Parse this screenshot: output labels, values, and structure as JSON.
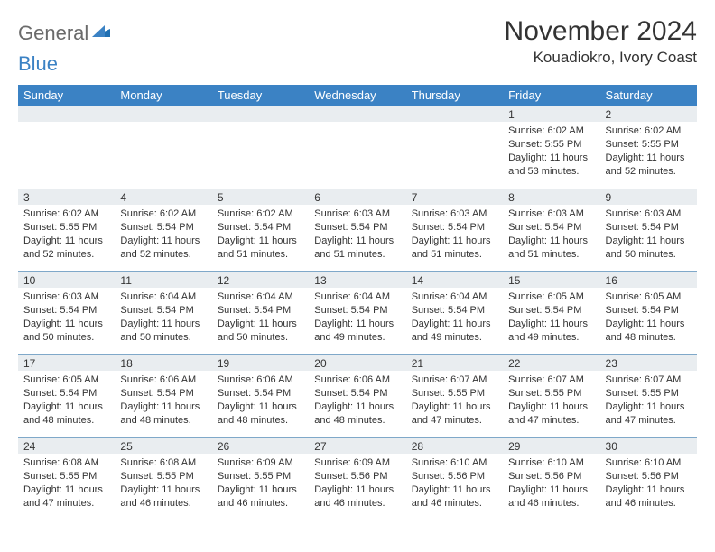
{
  "logo": {
    "text1": "General",
    "text2": "Blue"
  },
  "title": "November 2024",
  "location": "Kouadiokro, Ivory Coast",
  "colors": {
    "header_bg": "#3b82c4",
    "header_text": "#ffffff",
    "daynum_bg": "#e9edf0",
    "daynum_border": "#7fa8c9",
    "body_text": "#333333",
    "logo_gray": "#6b6b6b",
    "logo_blue": "#3b82c4"
  },
  "typography": {
    "title_fontsize": 30,
    "location_fontsize": 17,
    "header_fontsize": 13,
    "daynum_fontsize": 12,
    "cell_fontsize": 11
  },
  "day_headers": [
    "Sunday",
    "Monday",
    "Tuesday",
    "Wednesday",
    "Thursday",
    "Friday",
    "Saturday"
  ],
  "weeks": [
    [
      {
        "num": "",
        "sunrise": "",
        "sunset": "",
        "daylight": ""
      },
      {
        "num": "",
        "sunrise": "",
        "sunset": "",
        "daylight": ""
      },
      {
        "num": "",
        "sunrise": "",
        "sunset": "",
        "daylight": ""
      },
      {
        "num": "",
        "sunrise": "",
        "sunset": "",
        "daylight": ""
      },
      {
        "num": "",
        "sunrise": "",
        "sunset": "",
        "daylight": ""
      },
      {
        "num": "1",
        "sunrise": "Sunrise: 6:02 AM",
        "sunset": "Sunset: 5:55 PM",
        "daylight": "Daylight: 11 hours and 53 minutes."
      },
      {
        "num": "2",
        "sunrise": "Sunrise: 6:02 AM",
        "sunset": "Sunset: 5:55 PM",
        "daylight": "Daylight: 11 hours and 52 minutes."
      }
    ],
    [
      {
        "num": "3",
        "sunrise": "Sunrise: 6:02 AM",
        "sunset": "Sunset: 5:55 PM",
        "daylight": "Daylight: 11 hours and 52 minutes."
      },
      {
        "num": "4",
        "sunrise": "Sunrise: 6:02 AM",
        "sunset": "Sunset: 5:54 PM",
        "daylight": "Daylight: 11 hours and 52 minutes."
      },
      {
        "num": "5",
        "sunrise": "Sunrise: 6:02 AM",
        "sunset": "Sunset: 5:54 PM",
        "daylight": "Daylight: 11 hours and 51 minutes."
      },
      {
        "num": "6",
        "sunrise": "Sunrise: 6:03 AM",
        "sunset": "Sunset: 5:54 PM",
        "daylight": "Daylight: 11 hours and 51 minutes."
      },
      {
        "num": "7",
        "sunrise": "Sunrise: 6:03 AM",
        "sunset": "Sunset: 5:54 PM",
        "daylight": "Daylight: 11 hours and 51 minutes."
      },
      {
        "num": "8",
        "sunrise": "Sunrise: 6:03 AM",
        "sunset": "Sunset: 5:54 PM",
        "daylight": "Daylight: 11 hours and 51 minutes."
      },
      {
        "num": "9",
        "sunrise": "Sunrise: 6:03 AM",
        "sunset": "Sunset: 5:54 PM",
        "daylight": "Daylight: 11 hours and 50 minutes."
      }
    ],
    [
      {
        "num": "10",
        "sunrise": "Sunrise: 6:03 AM",
        "sunset": "Sunset: 5:54 PM",
        "daylight": "Daylight: 11 hours and 50 minutes."
      },
      {
        "num": "11",
        "sunrise": "Sunrise: 6:04 AM",
        "sunset": "Sunset: 5:54 PM",
        "daylight": "Daylight: 11 hours and 50 minutes."
      },
      {
        "num": "12",
        "sunrise": "Sunrise: 6:04 AM",
        "sunset": "Sunset: 5:54 PM",
        "daylight": "Daylight: 11 hours and 50 minutes."
      },
      {
        "num": "13",
        "sunrise": "Sunrise: 6:04 AM",
        "sunset": "Sunset: 5:54 PM",
        "daylight": "Daylight: 11 hours and 49 minutes."
      },
      {
        "num": "14",
        "sunrise": "Sunrise: 6:04 AM",
        "sunset": "Sunset: 5:54 PM",
        "daylight": "Daylight: 11 hours and 49 minutes."
      },
      {
        "num": "15",
        "sunrise": "Sunrise: 6:05 AM",
        "sunset": "Sunset: 5:54 PM",
        "daylight": "Daylight: 11 hours and 49 minutes."
      },
      {
        "num": "16",
        "sunrise": "Sunrise: 6:05 AM",
        "sunset": "Sunset: 5:54 PM",
        "daylight": "Daylight: 11 hours and 48 minutes."
      }
    ],
    [
      {
        "num": "17",
        "sunrise": "Sunrise: 6:05 AM",
        "sunset": "Sunset: 5:54 PM",
        "daylight": "Daylight: 11 hours and 48 minutes."
      },
      {
        "num": "18",
        "sunrise": "Sunrise: 6:06 AM",
        "sunset": "Sunset: 5:54 PM",
        "daylight": "Daylight: 11 hours and 48 minutes."
      },
      {
        "num": "19",
        "sunrise": "Sunrise: 6:06 AM",
        "sunset": "Sunset: 5:54 PM",
        "daylight": "Daylight: 11 hours and 48 minutes."
      },
      {
        "num": "20",
        "sunrise": "Sunrise: 6:06 AM",
        "sunset": "Sunset: 5:54 PM",
        "daylight": "Daylight: 11 hours and 48 minutes."
      },
      {
        "num": "21",
        "sunrise": "Sunrise: 6:07 AM",
        "sunset": "Sunset: 5:55 PM",
        "daylight": "Daylight: 11 hours and 47 minutes."
      },
      {
        "num": "22",
        "sunrise": "Sunrise: 6:07 AM",
        "sunset": "Sunset: 5:55 PM",
        "daylight": "Daylight: 11 hours and 47 minutes."
      },
      {
        "num": "23",
        "sunrise": "Sunrise: 6:07 AM",
        "sunset": "Sunset: 5:55 PM",
        "daylight": "Daylight: 11 hours and 47 minutes."
      }
    ],
    [
      {
        "num": "24",
        "sunrise": "Sunrise: 6:08 AM",
        "sunset": "Sunset: 5:55 PM",
        "daylight": "Daylight: 11 hours and 47 minutes."
      },
      {
        "num": "25",
        "sunrise": "Sunrise: 6:08 AM",
        "sunset": "Sunset: 5:55 PM",
        "daylight": "Daylight: 11 hours and 46 minutes."
      },
      {
        "num": "26",
        "sunrise": "Sunrise: 6:09 AM",
        "sunset": "Sunset: 5:55 PM",
        "daylight": "Daylight: 11 hours and 46 minutes."
      },
      {
        "num": "27",
        "sunrise": "Sunrise: 6:09 AM",
        "sunset": "Sunset: 5:56 PM",
        "daylight": "Daylight: 11 hours and 46 minutes."
      },
      {
        "num": "28",
        "sunrise": "Sunrise: 6:10 AM",
        "sunset": "Sunset: 5:56 PM",
        "daylight": "Daylight: 11 hours and 46 minutes."
      },
      {
        "num": "29",
        "sunrise": "Sunrise: 6:10 AM",
        "sunset": "Sunset: 5:56 PM",
        "daylight": "Daylight: 11 hours and 46 minutes."
      },
      {
        "num": "30",
        "sunrise": "Sunrise: 6:10 AM",
        "sunset": "Sunset: 5:56 PM",
        "daylight": "Daylight: 11 hours and 46 minutes."
      }
    ]
  ]
}
